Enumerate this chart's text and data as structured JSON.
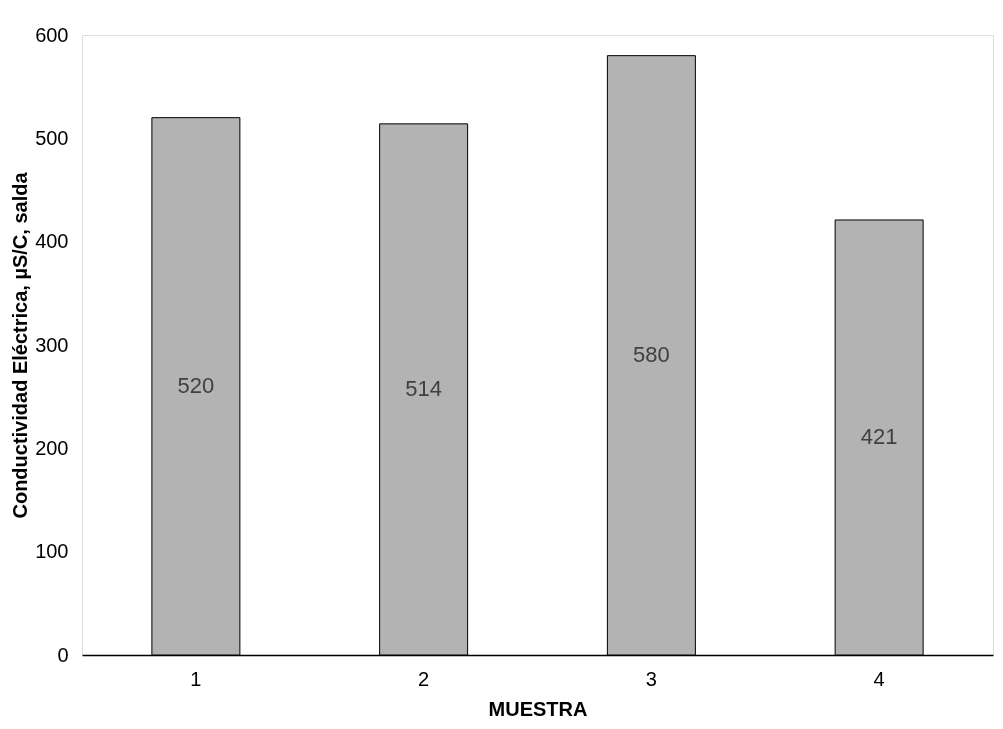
{
  "chart_data": {
    "type": "bar",
    "xlabel": "MUESTRA",
    "ylabel": "Conductividad Eléctrica, µS/C, salda",
    "categories": [
      "1",
      "2",
      "3",
      "4"
    ],
    "values": [
      520,
      514,
      580,
      421
    ],
    "color": "#b3b3b3",
    "ylim": [
      0,
      600
    ],
    "yticks": [
      0,
      100,
      200,
      300,
      400,
      500,
      600
    ],
    "grid": false,
    "data_labels": true
  }
}
